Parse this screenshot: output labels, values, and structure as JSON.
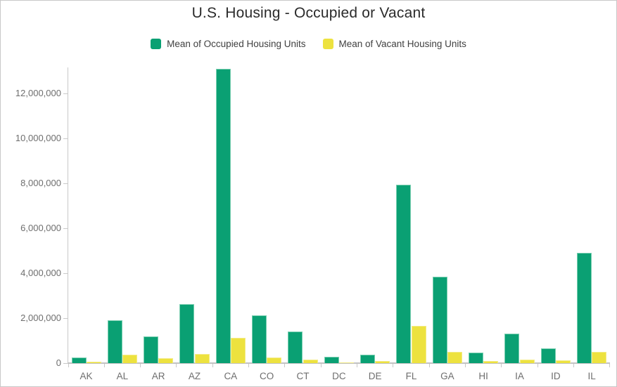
{
  "title": "U.S. Housing - Occupied or Vacant",
  "legend": {
    "items": [
      {
        "label": "Mean of Occupied Housing Units",
        "color": "#0aa073",
        "edge": "#79ceb0",
        "icon": "occupied-swatch-icon"
      },
      {
        "label": "Mean of Vacant Housing Units",
        "color": "#ede23f",
        "edge": "#f3eb86",
        "icon": "vacant-swatch-icon"
      }
    ]
  },
  "colors": {
    "background": "#ffffff",
    "frame_border": "#c8c8c8",
    "axis_line": "#c9c9c9",
    "tick_label": "#6e6e6e",
    "title_text": "#2b2b2b",
    "legend_text": "#404040"
  },
  "chart_data": {
    "type": "bar",
    "title": "U.S. Housing - Occupied or Vacant",
    "xlabel": "",
    "ylabel": "",
    "grid": false,
    "legend_position": "top",
    "ylim": [
      0,
      13200000
    ],
    "yticks": [
      0,
      2000000,
      4000000,
      6000000,
      8000000,
      10000000,
      12000000
    ],
    "y_tick_format": "comma",
    "categories": [
      "AK",
      "AL",
      "AR",
      "AZ",
      "CA",
      "CO",
      "CT",
      "DC",
      "DE",
      "FL",
      "GA",
      "HI",
      "IA",
      "ID",
      "IL"
    ],
    "series": [
      {
        "name": "Mean of Occupied Housing Units",
        "color": "#0aa073",
        "edge": "#79ceb0",
        "values": [
          260000,
          1900000,
          1180000,
          2630000,
          13100000,
          2130000,
          1400000,
          290000,
          380000,
          7950000,
          3850000,
          480000,
          1300000,
          660000,
          4900000
        ]
      },
      {
        "name": "Mean of Vacant Housing Units",
        "color": "#ede23f",
        "edge": "#f3eb86",
        "values": [
          70000,
          390000,
          210000,
          410000,
          1120000,
          250000,
          160000,
          40000,
          90000,
          1650000,
          510000,
          90000,
          160000,
          110000,
          500000
        ]
      }
    ]
  }
}
